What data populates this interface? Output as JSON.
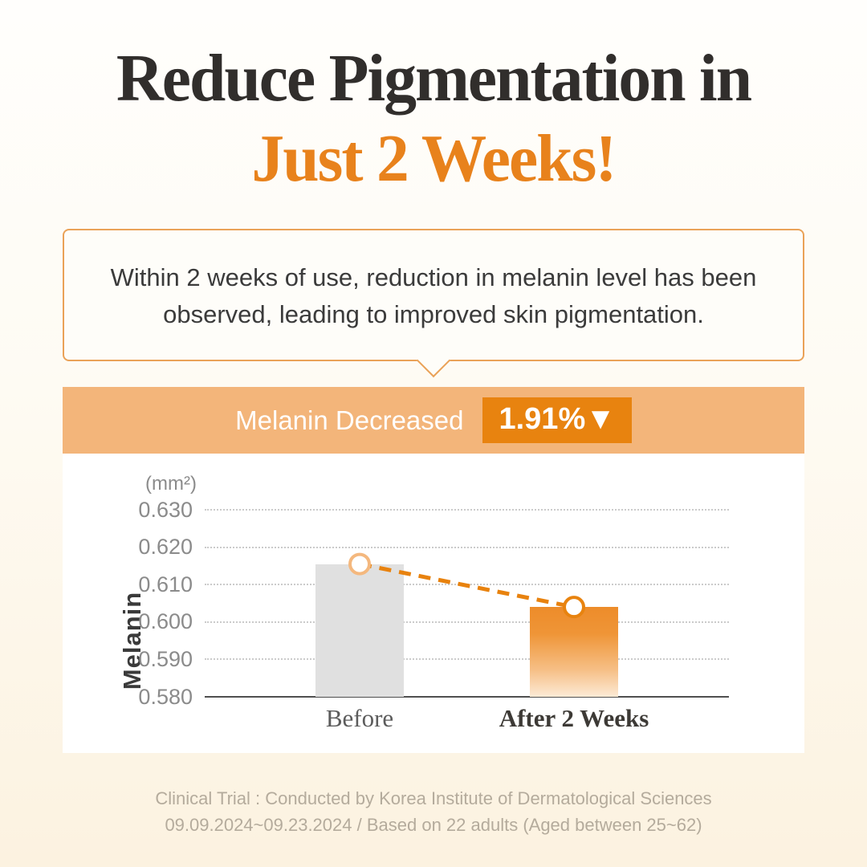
{
  "page": {
    "title_line1": "Reduce Pigmentation in",
    "title_line2": "Just 2 Weeks!",
    "colors": {
      "title_dark": "#312e2c",
      "accent_orange": "#e8821c",
      "bubble_border": "#eaa258",
      "banner_bg": "#f3b57a",
      "badge_bg": "#e8830f",
      "bar_before": "#e0e0e0",
      "bar_after_top": "#ed8c2a",
      "trend_line": "#e8820e",
      "footer_text": "#b4ab9c"
    }
  },
  "callout": {
    "line1": "Within 2 weeks of use, reduction in melanin level has been",
    "line2": "observed, leading to improved skin pigmentation."
  },
  "banner": {
    "label": "Melanin Decreased",
    "badge": "1.91%▼"
  },
  "chart_data": {
    "type": "bar",
    "title": "Melanin Decreased 1.91%",
    "ylabel": "Melanin",
    "xlabel": "",
    "unit": "(mm²)",
    "categories": [
      "Before",
      "After 2 Weeks"
    ],
    "values": [
      0.6155,
      0.604
    ],
    "ylim": [
      0.58,
      0.63
    ],
    "yticks": [
      "0.630",
      "0.620",
      "0.610",
      "0.600",
      "0.590",
      "0.580"
    ],
    "ytick_values": [
      0.63,
      0.62,
      0.61,
      0.6,
      0.59,
      0.58
    ],
    "grid": "horizontal dotted gridlines, solid baseline at 0.580",
    "legend": "none",
    "annotations": "dashed orange trend line with circular markers connecting bar tops"
  },
  "footer": {
    "line1": "Clinical Trial : Conducted by Korea Institute of Dermatological Sciences",
    "line2": "09.09.2024~09.23.2024 / Based on  22 adults (Aged between 25~62)"
  }
}
